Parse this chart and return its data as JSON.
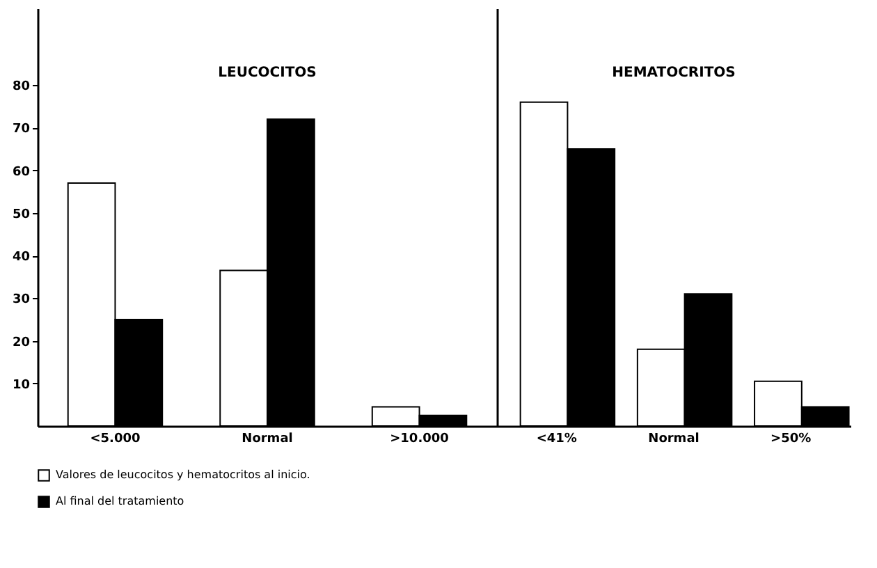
{
  "chart_data": [
    {
      "type": "bar",
      "title": "LEUCOCITOS",
      "categories": [
        "<5.000",
        "Normal",
        ">10.000"
      ],
      "series": [
        {
          "name": "Valores de leucocitos y hematocritos al inicio.",
          "color": "#ffffff",
          "values": [
            57,
            36.5,
            4.5
          ]
        },
        {
          "name": "Al final del tratamiento",
          "color": "#000000",
          "values": [
            25,
            72,
            2.5
          ]
        }
      ],
      "ylim": [
        0,
        98
      ],
      "yticks": [
        10,
        20,
        30,
        40,
        50,
        60,
        70,
        80
      ],
      "grid": false,
      "legend": "bottom left"
    },
    {
      "type": "bar",
      "title": "HEMATOCRITOS",
      "categories": [
        "<41%",
        "Normal",
        ">50%"
      ],
      "series": [
        {
          "name": "Valores de leucocitos y hematocritos al inicio.",
          "color": "#ffffff",
          "values": [
            76,
            18,
            10.5
          ]
        },
        {
          "name": "Al final del tratamiento",
          "color": "#000000",
          "values": [
            65,
            31,
            4.5
          ]
        }
      ],
      "ylim": [
        0,
        98
      ],
      "yticks": [
        10,
        20,
        30,
        40,
        50,
        60,
        70,
        80
      ],
      "grid": false,
      "tick_labels": "x",
      "legend": "bottom left"
    }
  ]
}
